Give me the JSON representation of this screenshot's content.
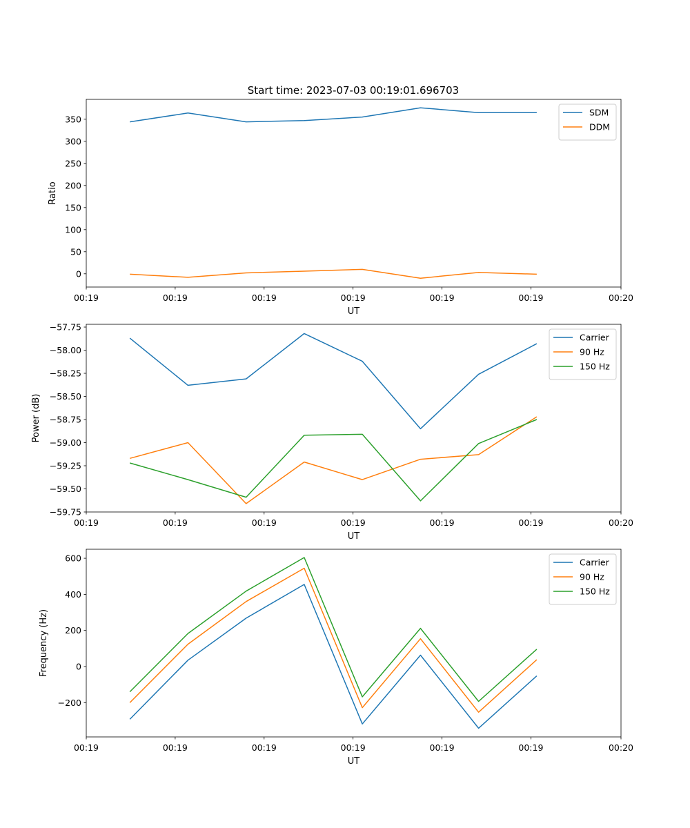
{
  "figure": {
    "title": "Start time: 2023-07-03 00:19:01.696703"
  },
  "chart_data": [
    {
      "type": "line",
      "xlabel": "UT",
      "ylabel": "Ratio",
      "x": [
        1,
        2,
        3,
        4,
        5,
        6,
        7,
        8
      ],
      "xlim": [
        0.25,
        9.45
      ],
      "xticks": [
        {
          "v": 0.25,
          "label": "00:19"
        },
        {
          "v": 1.78,
          "label": "00:19"
        },
        {
          "v": 3.31,
          "label": "00:19"
        },
        {
          "v": 4.84,
          "label": "00:19"
        },
        {
          "v": 6.37,
          "label": "00:19"
        },
        {
          "v": 7.9,
          "label": "00:19"
        },
        {
          "v": 9.45,
          "label": "00:20"
        }
      ],
      "ylim": [
        -30,
        395
      ],
      "yticks": [
        0,
        50,
        100,
        150,
        200,
        250,
        300,
        350
      ],
      "legend": "top-right",
      "series": [
        {
          "name": "SDM",
          "color": "#1f77b4",
          "values": [
            344,
            364,
            344,
            347,
            355,
            376,
            365,
            365
          ]
        },
        {
          "name": "DDM",
          "color": "#ff7f0e",
          "values": [
            -1,
            -8,
            2,
            6,
            10,
            -10,
            3,
            -1
          ]
        }
      ]
    },
    {
      "type": "line",
      "xlabel": "UT",
      "ylabel": "Power (dB)",
      "x": [
        1,
        2,
        3,
        4,
        5,
        6,
        7,
        8
      ],
      "xlim": [
        0.25,
        9.45
      ],
      "xticks": [
        {
          "v": 0.25,
          "label": "00:19"
        },
        {
          "v": 1.78,
          "label": "00:19"
        },
        {
          "v": 3.31,
          "label": "00:19"
        },
        {
          "v": 4.84,
          "label": "00:19"
        },
        {
          "v": 6.37,
          "label": "00:19"
        },
        {
          "v": 7.9,
          "label": "00:19"
        },
        {
          "v": 9.45,
          "label": "00:20"
        }
      ],
      "ylim": [
        -59.75,
        -57.72
      ],
      "yticks": [
        {
          "v": -57.75,
          "label": "−57.75"
        },
        {
          "v": -58.0,
          "label": "−58.00"
        },
        {
          "v": -58.25,
          "label": "−58.25"
        },
        {
          "v": -58.5,
          "label": "−58.50"
        },
        {
          "v": -58.75,
          "label": "−58.75"
        },
        {
          "v": -59.0,
          "label": "−59.00"
        },
        {
          "v": -59.25,
          "label": "−59.25"
        },
        {
          "v": -59.5,
          "label": "−59.50"
        },
        {
          "v": -59.75,
          "label": "−59.75"
        }
      ],
      "legend": "top-right",
      "series": [
        {
          "name": "Carrier",
          "color": "#1f77b4",
          "values": [
            -57.87,
            -58.38,
            -58.31,
            -57.82,
            -58.12,
            -58.85,
            -58.26,
            -57.93
          ]
        },
        {
          "name": "90 Hz",
          "color": "#ff7f0e",
          "values": [
            -59.17,
            -59.0,
            -59.66,
            -59.21,
            -59.4,
            -59.18,
            -59.13,
            -58.72
          ]
        },
        {
          "name": "150 Hz",
          "color": "#2ca02c",
          "values": [
            -59.22,
            -59.4,
            -59.59,
            -58.92,
            -58.91,
            -59.63,
            -59.01,
            -58.75
          ]
        }
      ]
    },
    {
      "type": "line",
      "xlabel": "UT",
      "ylabel": "Frequency (Hz)",
      "x": [
        1,
        2,
        3,
        4,
        5,
        6,
        7,
        8
      ],
      "xlim": [
        0.25,
        9.45
      ],
      "xticks": [
        {
          "v": 0.25,
          "label": "00:19"
        },
        {
          "v": 1.78,
          "label": "00:19"
        },
        {
          "v": 3.31,
          "label": "00:19"
        },
        {
          "v": 4.84,
          "label": "00:19"
        },
        {
          "v": 6.37,
          "label": "00:19"
        },
        {
          "v": 7.9,
          "label": "00:19"
        },
        {
          "v": 9.45,
          "label": "00:20"
        }
      ],
      "ylim": [
        -390,
        650
      ],
      "yticks": [
        {
          "v": -200,
          "label": "−200"
        },
        {
          "v": 0,
          "label": "0"
        },
        {
          "v": 200,
          "label": "200"
        },
        {
          "v": 400,
          "label": "400"
        },
        {
          "v": 600,
          "label": "600"
        }
      ],
      "legend": "top-right",
      "series": [
        {
          "name": "Carrier",
          "color": "#1f77b4",
          "values": [
            -292,
            35,
            268,
            455,
            -318,
            63,
            -342,
            -52
          ]
        },
        {
          "name": "90 Hz",
          "color": "#ff7f0e",
          "values": [
            -200,
            124,
            360,
            545,
            -228,
            154,
            -253,
            38
          ]
        },
        {
          "name": "150 Hz",
          "color": "#2ca02c",
          "values": [
            -140,
            183,
            418,
            604,
            -168,
            212,
            -193,
            96
          ]
        }
      ]
    }
  ]
}
